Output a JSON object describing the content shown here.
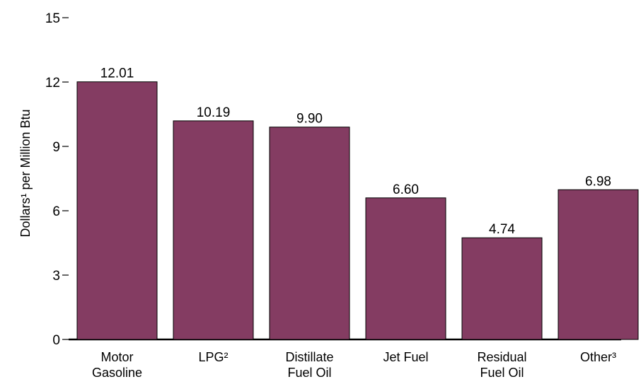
{
  "chart_data": {
    "type": "bar",
    "title": "",
    "xlabel": "",
    "ylabel": "Dollars¹ per Million Btu",
    "ylim": [
      0,
      15
    ],
    "yticks": [
      0,
      3,
      6,
      9,
      12,
      15
    ],
    "grid": false,
    "categories": [
      [
        "Motor",
        "Gasoline"
      ],
      [
        "LPG²"
      ],
      [
        "Distillate",
        "Fuel Oil"
      ],
      [
        "Jet Fuel"
      ],
      [
        "Residual",
        "Fuel Oil"
      ],
      [
        "Other³"
      ]
    ],
    "values": [
      12.01,
      10.19,
      9.9,
      6.6,
      4.74,
      6.98
    ],
    "data_labels": [
      "12.01",
      "10.19",
      "9.90",
      "6.60",
      "4.74",
      "6.98"
    ],
    "colors": {
      "bar_fill": "#843C62",
      "bar_stroke": "#000000",
      "axis": "#000000"
    }
  }
}
